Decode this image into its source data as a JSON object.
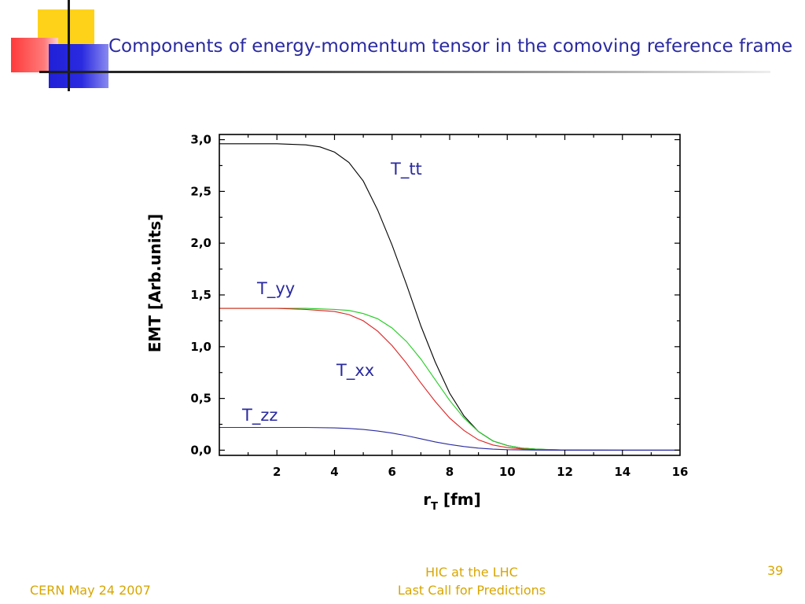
{
  "slide": {
    "title": "Components of energy-momentum tensor in the comoving reference frame",
    "footer_left": "CERN May 24 2007",
    "footer_center_line1": "HIC at the LHC",
    "footer_center_line2": "Last Call for Predictions",
    "page_number": "39",
    "theme_colors": {
      "title": "#2a2aa0",
      "footer": "#d8a600",
      "deco_yellow": "#ffd21a",
      "deco_red": "#ff3a3a",
      "deco_blue": "#2020d8"
    }
  },
  "chart_data": {
    "type": "line",
    "title": "",
    "xlabel_main": "r",
    "xlabel_sub": "T",
    "xlabel_unit": " [fm]",
    "ylabel": "EMT [Arb.units]",
    "xlim": [
      0,
      16
    ],
    "ylim": [
      -0.05,
      3.05
    ],
    "x_ticks": [
      2,
      4,
      6,
      8,
      10,
      12,
      14,
      16
    ],
    "x_tick_labels": [
      "2",
      "4",
      "6",
      "8",
      "10",
      "12",
      "14",
      "16"
    ],
    "y_ticks": [
      0,
      0.5,
      1.0,
      1.5,
      2.0,
      2.5,
      3.0
    ],
    "y_tick_labels": [
      "0,0",
      "0,5",
      "1,0",
      "1,5",
      "2,0",
      "2,5",
      "3,0"
    ],
    "grid": false,
    "legend": "none",
    "series": [
      {
        "name": "T_tt",
        "color": "#000000",
        "x": [
          0,
          1,
          2,
          3,
          3.5,
          4,
          4.5,
          5,
          5.5,
          6,
          6.5,
          7,
          7.5,
          8,
          8.5,
          9,
          9.5,
          10,
          10.5,
          11,
          11.5,
          12,
          13,
          14,
          16
        ],
        "y": [
          2.96,
          2.96,
          2.96,
          2.95,
          2.93,
          2.88,
          2.78,
          2.6,
          2.32,
          1.98,
          1.6,
          1.2,
          0.85,
          0.55,
          0.33,
          0.18,
          0.09,
          0.045,
          0.02,
          0.01,
          0.005,
          0.002,
          0.001,
          0.0,
          0.0
        ]
      },
      {
        "name": "T_yy",
        "color": "#22cc22",
        "x": [
          0,
          1,
          2,
          3,
          4,
          4.5,
          5,
          5.5,
          6,
          6.5,
          7,
          7.5,
          8,
          8.5,
          9,
          9.5,
          10,
          10.5,
          11,
          12,
          13,
          16
        ],
        "y": [
          1.37,
          1.37,
          1.37,
          1.37,
          1.36,
          1.35,
          1.32,
          1.27,
          1.18,
          1.05,
          0.88,
          0.68,
          0.48,
          0.31,
          0.18,
          0.09,
          0.045,
          0.02,
          0.01,
          0.002,
          0.0,
          0.0
        ]
      },
      {
        "name": "T_xx",
        "color": "#dd2222",
        "x": [
          0,
          1,
          2,
          3,
          4,
          4.5,
          5,
          5.5,
          6,
          6.5,
          7,
          7.5,
          8,
          8.5,
          9,
          9.5,
          10,
          10.5,
          11,
          12,
          13,
          16
        ],
        "y": [
          1.37,
          1.37,
          1.37,
          1.36,
          1.34,
          1.31,
          1.25,
          1.15,
          1.01,
          0.84,
          0.65,
          0.47,
          0.31,
          0.19,
          0.1,
          0.05,
          0.025,
          0.012,
          0.005,
          0.001,
          0.0,
          0.0
        ]
      },
      {
        "name": "T_zz",
        "color": "#2a2aa0",
        "x": [
          0,
          1,
          2,
          3,
          4,
          4.5,
          5,
          5.5,
          6,
          6.5,
          7,
          7.5,
          8,
          8.5,
          9,
          9.5,
          10,
          11,
          12,
          16
        ],
        "y": [
          0.22,
          0.22,
          0.22,
          0.22,
          0.215,
          0.21,
          0.2,
          0.185,
          0.165,
          0.14,
          0.11,
          0.08,
          0.055,
          0.035,
          0.02,
          0.01,
          0.005,
          0.001,
          0.0,
          0.0
        ]
      }
    ],
    "annotations": [
      "T_tt",
      "T_yy",
      "T_xx",
      "T_zz"
    ]
  }
}
